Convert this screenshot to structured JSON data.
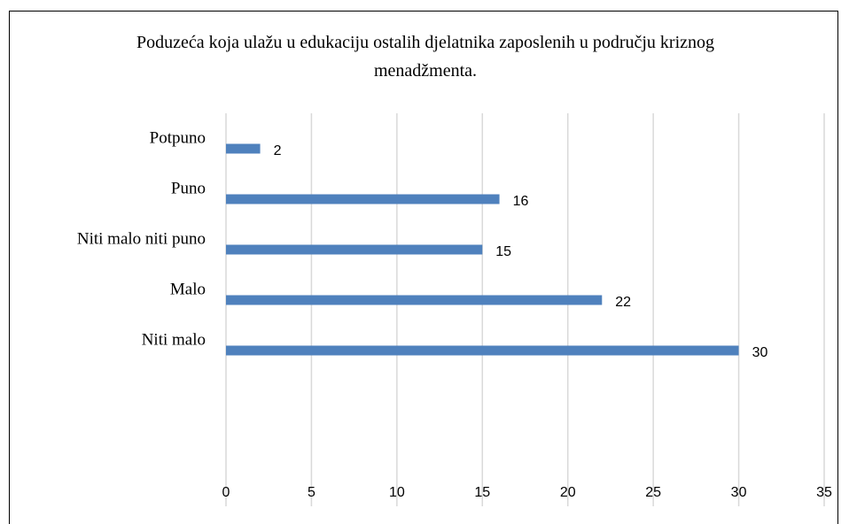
{
  "chart_data": {
    "type": "bar",
    "orientation": "horizontal",
    "title": "Poduzeća koja ulažu u edukaciju ostalih  djelatnika zaposlenih u području kriznog menadžmenta.",
    "categories": [
      "Potpuno",
      "Puno",
      "Niti malo niti puno",
      "Malo",
      "Niti malo"
    ],
    "values": [
      2,
      16,
      15,
      22,
      30
    ],
    "color": "#4f81bd",
    "xlim": [
      0,
      35
    ],
    "xticks": [
      0,
      5,
      10,
      15,
      20,
      25,
      30,
      35
    ],
    "grid": true
  }
}
